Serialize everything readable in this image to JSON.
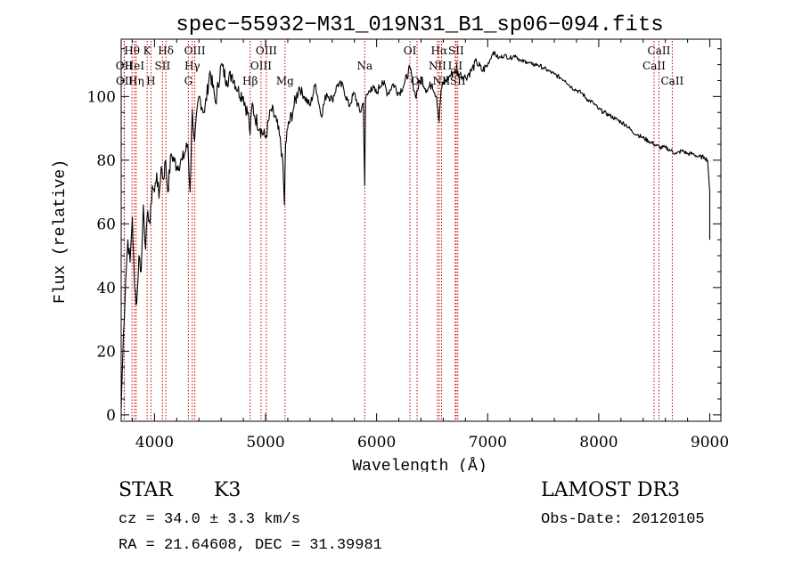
{
  "chart_data": {
    "type": "line",
    "title": "spec−55932−M31_019N31_B1_sp06−094.fits",
    "xlabel": "Wavelength (Å)",
    "ylabel": "Flux (relative)",
    "xlim": [
      3700,
      9100
    ],
    "ylim": [
      -2,
      118
    ],
    "xticks": [
      4000,
      5000,
      6000,
      7000,
      8000,
      9000
    ],
    "yticks": [
      0,
      20,
      40,
      60,
      80,
      100
    ],
    "grid": false,
    "series": [
      {
        "name": "flux",
        "x": [
          3700,
          3720,
          3740,
          3760,
          3780,
          3800,
          3820,
          3840,
          3860,
          3880,
          3900,
          3920,
          3940,
          3960,
          3980,
          4000,
          4020,
          4040,
          4060,
          4080,
          4100,
          4120,
          4150,
          4200,
          4250,
          4300,
          4320,
          4340,
          4360,
          4400,
          4450,
          4500,
          4550,
          4600,
          4650,
          4700,
          4750,
          4800,
          4850,
          4861,
          4880,
          4900,
          4950,
          5000,
          5050,
          5100,
          5150,
          5170,
          5180,
          5200,
          5250,
          5300,
          5350,
          5400,
          5450,
          5500,
          5550,
          5600,
          5650,
          5700,
          5750,
          5800,
          5850,
          5880,
          5893,
          5900,
          5950,
          6000,
          6050,
          6100,
          6150,
          6200,
          6250,
          6300,
          6350,
          6400,
          6450,
          6500,
          6540,
          6563,
          6580,
          6600,
          6650,
          6700,
          6750,
          6800,
          6850,
          6900,
          6950,
          7000,
          7050,
          7100,
          7150,
          7200,
          7250,
          7300,
          7350,
          7400,
          7450,
          7500,
          7550,
          7600,
          7650,
          7700,
          7750,
          7800,
          7850,
          7900,
          7950,
          8000,
          8050,
          8100,
          8150,
          8200,
          8250,
          8300,
          8350,
          8400,
          8450,
          8500,
          8550,
          8600,
          8650,
          8700,
          8750,
          8800,
          8850,
          8900,
          8950,
          8980,
          9000
        ],
        "values": [
          2,
          25,
          42,
          55,
          48,
          62,
          40,
          35,
          50,
          45,
          66,
          52,
          64,
          60,
          72,
          70,
          76,
          68,
          78,
          74,
          80,
          70,
          82,
          78,
          80,
          85,
          70,
          96,
          86,
          100,
          95,
          108,
          98,
          110,
          105,
          107,
          102,
          100,
          93,
          88,
          98,
          94,
          90,
          87,
          96,
          92,
          82,
          66,
          85,
          90,
          96,
          103,
          100,
          97,
          104,
          94,
          101,
          99,
          104,
          103,
          97,
          101,
          95,
          98,
          72,
          99,
          103,
          101,
          105,
          101,
          104,
          101,
          104,
          109,
          100,
          106,
          102,
          104,
          100,
          92,
          102,
          104,
          106,
          108,
          107,
          106,
          108,
          111,
          108,
          110,
          114,
          112,
          113,
          112,
          113,
          111,
          111,
          110,
          110,
          109,
          108,
          107,
          106,
          105,
          103,
          102,
          101,
          99,
          98,
          96,
          95,
          94,
          93,
          92,
          91,
          89,
          88,
          87,
          86,
          85,
          84,
          84,
          83,
          82,
          83,
          82,
          82,
          81,
          81,
          80,
          70
        ]
      }
    ],
    "line_markers": [
      {
        "label": "Hθ",
        "wavelength": 3797,
        "row": 1
      },
      {
        "label": "OII",
        "wavelength": 3727,
        "row": 2
      },
      {
        "label": "OII",
        "wavelength": 3729,
        "row": 3
      },
      {
        "label": "HeI",
        "wavelength": 3820,
        "row": 2
      },
      {
        "label": "Hη",
        "wavelength": 3835,
        "row": 3
      },
      {
        "label": "K",
        "wavelength": 3934,
        "row": 1
      },
      {
        "label": "SII",
        "wavelength": 4072,
        "row": 2
      },
      {
        "label": "H",
        "wavelength": 3968,
        "row": 3
      },
      {
        "label": "Hδ",
        "wavelength": 4102,
        "row": 1
      },
      {
        "label": "OIII",
        "wavelength": 4363,
        "row": 1
      },
      {
        "label": "Hγ",
        "wavelength": 4340,
        "row": 2
      },
      {
        "label": "G",
        "wavelength": 4305,
        "row": 3
      },
      {
        "label": "OIII",
        "wavelength": 5007,
        "row": 1
      },
      {
        "label": "OIII",
        "wavelength": 4959,
        "row": 2
      },
      {
        "label": "Hβ",
        "wavelength": 4861,
        "row": 3
      },
      {
        "label": "Mg",
        "wavelength": 5175,
        "row": 3
      },
      {
        "label": "Na",
        "wavelength": 5893,
        "row": 2
      },
      {
        "label": "OI",
        "wavelength": 6300,
        "row": 1
      },
      {
        "label": "OI",
        "wavelength": 6364,
        "row": 3
      },
      {
        "label": "Hα",
        "wavelength": 6563,
        "row": 1
      },
      {
        "label": "NII",
        "wavelength": 6548,
        "row": 2
      },
      {
        "label": "NII",
        "wavelength": 6584,
        "row": 3
      },
      {
        "label": "SII",
        "wavelength": 6716,
        "row": 1
      },
      {
        "label": "LiI",
        "wavelength": 6708,
        "row": 2
      },
      {
        "label": "SII",
        "wavelength": 6731,
        "row": 3
      },
      {
        "label": "CaII",
        "wavelength": 8542,
        "row": 1
      },
      {
        "label": "CaII",
        "wavelength": 8498,
        "row": 2
      },
      {
        "label": "CaII",
        "wavelength": 8662,
        "row": 3
      }
    ],
    "marker_color": "#cc0000"
  },
  "info": {
    "object_type": "STAR",
    "subclass": "K3",
    "survey": "LAMOST DR3",
    "cz_line": "cz = 34.0 ± 3.3 km/s",
    "obs_line": "Obs-Date: 20120105",
    "radec_line": "RA =  21.64608, DEC =  31.39981"
  }
}
